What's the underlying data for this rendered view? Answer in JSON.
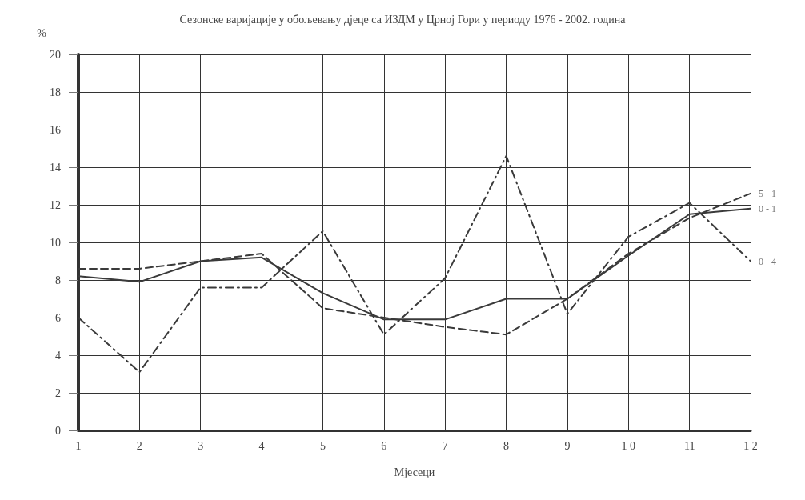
{
  "chart_data": {
    "type": "line",
    "title": "Сезонске варијације у обољевању дјеце са ИЗДМ у Црној Гори у периоду 1976 - 2002. година",
    "xlabel": "Мјесеци",
    "ylabel": "%",
    "categories": [
      "1",
      "2",
      "3",
      "4",
      "5",
      "6",
      "7",
      "8",
      "9",
      "1 0",
      "11",
      "1 2"
    ],
    "series": [
      {
        "name": "0 - 1",
        "color": "#3a3a3a",
        "line_style": "solid",
        "values": [
          8.2,
          7.9,
          9.0,
          9.2,
          7.3,
          5.9,
          5.9,
          7.0,
          7.0,
          9.3,
          11.5,
          11.8
        ]
      },
      {
        "name": "5 - 1",
        "color": "#3a3a3a",
        "line_style": "dashed",
        "values": [
          8.6,
          8.6,
          9.0,
          9.4,
          6.5,
          6.0,
          5.5,
          5.1,
          7.0,
          9.4,
          11.3,
          12.6
        ]
      },
      {
        "name": "0 - 4",
        "color": "#3a3a3a",
        "line_style": "dotted",
        "values": [
          6.0,
          3.1,
          7.6,
          7.6,
          10.6,
          5.1,
          8.1,
          14.6,
          6.2,
          10.3,
          12.1,
          9.0
        ]
      }
    ],
    "ylim": [
      0,
      20
    ],
    "yticks": [
      0,
      2,
      4,
      6,
      8,
      10,
      12,
      14,
      16,
      18,
      20
    ],
    "grid": true,
    "legend": false,
    "marker": "none"
  }
}
